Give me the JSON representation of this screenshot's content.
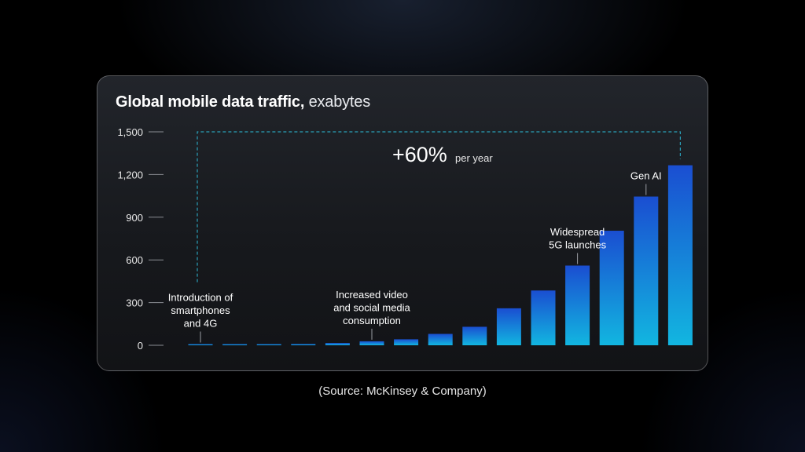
{
  "source": "(Source: McKinsey & Company)",
  "colors": {
    "bar_top": "#1a4ed1",
    "bar_bottom": "#12b6e0",
    "annotation_line": "#2a9fb8"
  },
  "chart_data": {
    "type": "bar",
    "title": "Global mobile data traffic,",
    "unit_label": "exabytes",
    "xlabel": "",
    "ylabel": "",
    "ylim": [
      0,
      1500
    ],
    "yticks": [
      0,
      300,
      600,
      900,
      1200,
      1500
    ],
    "ytick_labels": [
      "0",
      "300",
      "600",
      "900",
      "1,200",
      "1,500"
    ],
    "grid": false,
    "categories": [
      "",
      "",
      "",
      "",
      "",
      "",
      "",
      "",
      "",
      "",
      "",
      "",
      "",
      "",
      ""
    ],
    "values": [
      2,
      4,
      6,
      9,
      16,
      28,
      42,
      80,
      130,
      260,
      385,
      560,
      805,
      1045,
      1265
    ],
    "growth_label": {
      "value": "+60%",
      "suffix": "per year",
      "from_index": 0,
      "to_index": 14,
      "y_level": 1500
    },
    "annotations": [
      {
        "bar_index": 0,
        "lines": [
          "Introduction of",
          "smartphones",
          "and 4G"
        ]
      },
      {
        "bar_index": 5,
        "lines": [
          "Increased video",
          "and social media",
          "consumption"
        ]
      },
      {
        "bar_index": 11,
        "lines": [
          "Widespread",
          "5G launches"
        ]
      },
      {
        "bar_index": 13,
        "lines": [
          "Gen AI"
        ]
      }
    ]
  }
}
